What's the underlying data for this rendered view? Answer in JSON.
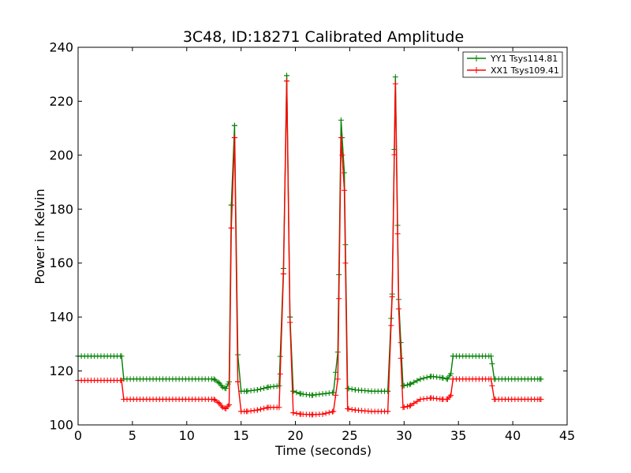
{
  "chart_data": {
    "type": "line",
    "title": "3C48, ID:18271 Calibrated Amplitude",
    "xlabel": "Time (seconds)",
    "ylabel": "Power in Kelvin",
    "xlim": [
      0,
      45
    ],
    "ylim": [
      100,
      240
    ],
    "xticks": [
      "0",
      "5",
      "10",
      "15",
      "20",
      "25",
      "30",
      "35",
      "40",
      "45"
    ],
    "yticks": [
      "100",
      "120",
      "140",
      "160",
      "180",
      "200",
      "220",
      "240"
    ],
    "grid": false,
    "legend_position": "top-right",
    "marker": "+",
    "series": [
      {
        "name": "YY1 Tsys114.81",
        "color": "#008000",
        "points": [
          [
            0.0,
            125.5
          ],
          [
            4.0,
            125.5
          ],
          [
            4.2,
            117.0
          ],
          [
            12.5,
            117.0
          ],
          [
            13.0,
            115.5
          ],
          [
            13.3,
            114.0
          ],
          [
            13.6,
            113.5
          ],
          [
            13.9,
            116.0
          ],
          [
            14.1,
            181.5
          ],
          [
            14.4,
            211.0
          ],
          [
            14.7,
            126.0
          ],
          [
            15.0,
            112.5
          ],
          [
            15.5,
            112.5
          ],
          [
            16.5,
            113.0
          ],
          [
            17.5,
            114.0
          ],
          [
            18.5,
            114.5
          ],
          [
            18.9,
            158.0
          ],
          [
            19.2,
            229.5
          ],
          [
            19.5,
            140.0
          ],
          [
            19.8,
            112.5
          ],
          [
            20.5,
            111.5
          ],
          [
            21.5,
            111.0
          ],
          [
            22.5,
            111.5
          ],
          [
            23.5,
            112.0
          ],
          [
            23.9,
            127.0
          ],
          [
            24.2,
            213.0
          ],
          [
            24.5,
            193.5
          ],
          [
            24.8,
            113.5
          ],
          [
            25.5,
            113.0
          ],
          [
            27.0,
            112.5
          ],
          [
            28.5,
            112.5
          ],
          [
            28.9,
            148.5
          ],
          [
            29.2,
            229.0
          ],
          [
            29.5,
            146.5
          ],
          [
            29.9,
            114.5
          ],
          [
            30.5,
            115.0
          ],
          [
            31.5,
            117.0
          ],
          [
            32.5,
            118.0
          ],
          [
            33.5,
            117.5
          ],
          [
            34.0,
            117.0
          ],
          [
            34.3,
            119.0
          ],
          [
            34.5,
            125.5
          ],
          [
            38.0,
            125.5
          ],
          [
            38.3,
            117.0
          ],
          [
            42.5,
            117.0
          ]
        ]
      },
      {
        "name": "XX1 Tsys109.41",
        "color": "#ff0000",
        "points": [
          [
            0.0,
            116.5
          ],
          [
            4.0,
            116.5
          ],
          [
            4.2,
            109.5
          ],
          [
            12.5,
            109.5
          ],
          [
            13.0,
            108.0
          ],
          [
            13.3,
            106.5
          ],
          [
            13.6,
            106.0
          ],
          [
            13.9,
            107.5
          ],
          [
            14.1,
            173.0
          ],
          [
            14.4,
            206.5
          ],
          [
            14.7,
            116.0
          ],
          [
            15.0,
            105.0
          ],
          [
            15.5,
            105.0
          ],
          [
            16.5,
            105.5
          ],
          [
            17.5,
            106.5
          ],
          [
            18.5,
            106.5
          ],
          [
            18.9,
            156.0
          ],
          [
            19.2,
            227.5
          ],
          [
            19.5,
            138.0
          ],
          [
            19.8,
            104.5
          ],
          [
            20.5,
            104.0
          ],
          [
            21.5,
            103.8
          ],
          [
            22.5,
            104.0
          ],
          [
            23.5,
            105.0
          ],
          [
            23.9,
            117.0
          ],
          [
            24.2,
            206.5
          ],
          [
            24.5,
            187.0
          ],
          [
            24.8,
            106.0
          ],
          [
            25.5,
            105.5
          ],
          [
            27.0,
            105.0
          ],
          [
            28.5,
            105.0
          ],
          [
            28.9,
            147.5
          ],
          [
            29.2,
            226.5
          ],
          [
            29.5,
            143.0
          ],
          [
            29.9,
            106.5
          ],
          [
            30.5,
            107.0
          ],
          [
            31.5,
            109.5
          ],
          [
            32.5,
            110.0
          ],
          [
            33.5,
            109.5
          ],
          [
            34.0,
            109.5
          ],
          [
            34.3,
            111.0
          ],
          [
            34.5,
            117.0
          ],
          [
            38.0,
            117.0
          ],
          [
            38.3,
            109.5
          ],
          [
            42.5,
            109.5
          ]
        ]
      }
    ]
  }
}
